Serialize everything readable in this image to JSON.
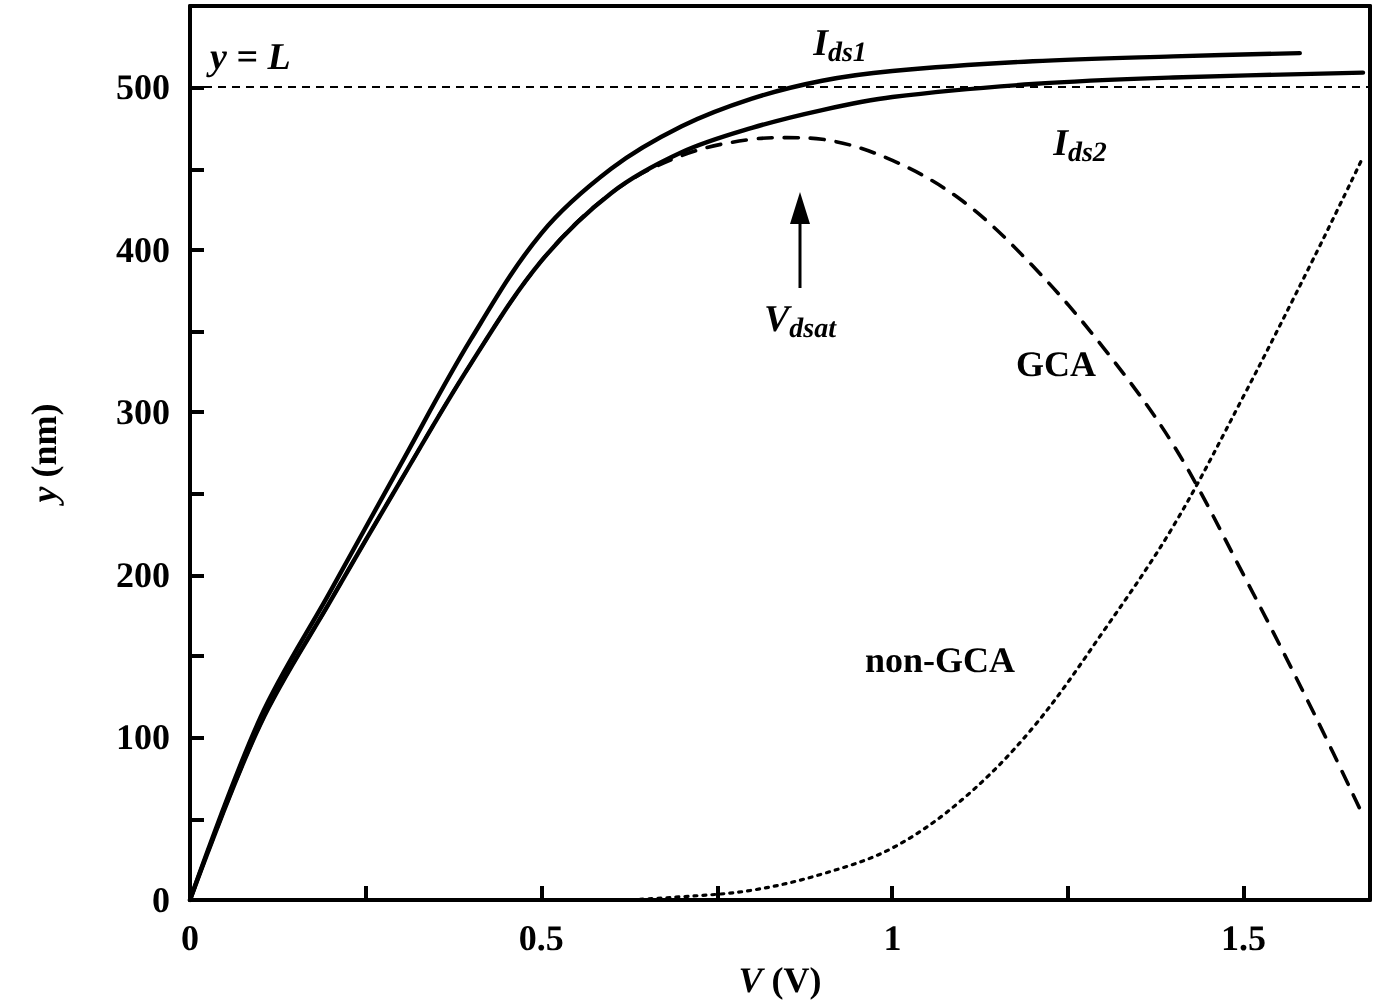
{
  "chart_data": {
    "type": "line",
    "xlabel": "V (V)",
    "ylabel": "y (nm)",
    "xlim": [
      0,
      1.68
    ],
    "ylim": [
      0,
      550
    ],
    "xticks": [
      0,
      {
        "value": 0.25,
        "label": null
      },
      0.5,
      {
        "value": 0.75,
        "label": null
      },
      1,
      {
        "value": 1.25,
        "label": null
      },
      1.5
    ],
    "yticks": [
      0,
      {
        "value": 50,
        "label": null
      },
      100,
      {
        "value": 150,
        "label": null
      },
      200,
      {
        "value": 250,
        "label": null
      },
      300,
      {
        "value": 350,
        "label": null
      },
      400,
      {
        "value": 450,
        "label": null
      },
      500
    ],
    "grid": false,
    "marker": "none",
    "series": [
      {
        "color": "#000000",
        "line_style": "solid",
        "x": [
          0,
          0.1,
          0.2,
          0.3,
          0.4,
          0.5,
          0.6,
          0.7,
          0.8,
          0.9,
          1.0,
          1.2,
          1.4,
          1.58
        ],
        "values": [
          0,
          112,
          190,
          268,
          345,
          410,
          450,
          476,
          493,
          504,
          510,
          516,
          519,
          521
        ]
      },
      {
        "color": "#000000",
        "line_style": "solid",
        "x": [
          0,
          0.1,
          0.2,
          0.3,
          0.4,
          0.5,
          0.6,
          0.7,
          0.8,
          0.9,
          1.0,
          1.2,
          1.4,
          1.67
        ],
        "values": [
          0,
          108,
          184,
          258,
          330,
          393,
          435,
          460,
          475,
          486,
          494,
          502,
          506,
          509
        ]
      },
      {
        "color": "#000000",
        "line_style": "dashed",
        "x": [
          0,
          0.1,
          0.2,
          0.3,
          0.4,
          0.5,
          0.6,
          0.7,
          0.8,
          0.85,
          0.9,
          1.0,
          1.1,
          1.2,
          1.3,
          1.4,
          1.5,
          1.6,
          1.67
        ],
        "values": [
          0,
          108,
          184,
          258,
          330,
          393,
          435,
          458,
          468,
          469,
          468,
          455,
          430,
          390,
          340,
          280,
          200,
          115,
          52
        ]
      },
      {
        "color": "#000000",
        "line_style": "dotted",
        "x": [
          0,
          0.6,
          0.7,
          0.8,
          0.9,
          1.0,
          1.1,
          1.2,
          1.3,
          1.4,
          1.5,
          1.6,
          1.67
        ],
        "values": [
          0,
          0,
          2,
          6,
          16,
          32,
          62,
          106,
          165,
          230,
          310,
          395,
          457
        ]
      }
    ],
    "ref_lines": [
      {
        "axis": "y",
        "value": 500,
        "label": "y = L",
        "line_style": "dashed",
        "color": "#000000"
      }
    ],
    "annotations": [
      "I$_{ds1}$",
      "I$_{ds2}$",
      "V$_{dsat}$",
      "GCA",
      "non-GCA"
    ]
  }
}
